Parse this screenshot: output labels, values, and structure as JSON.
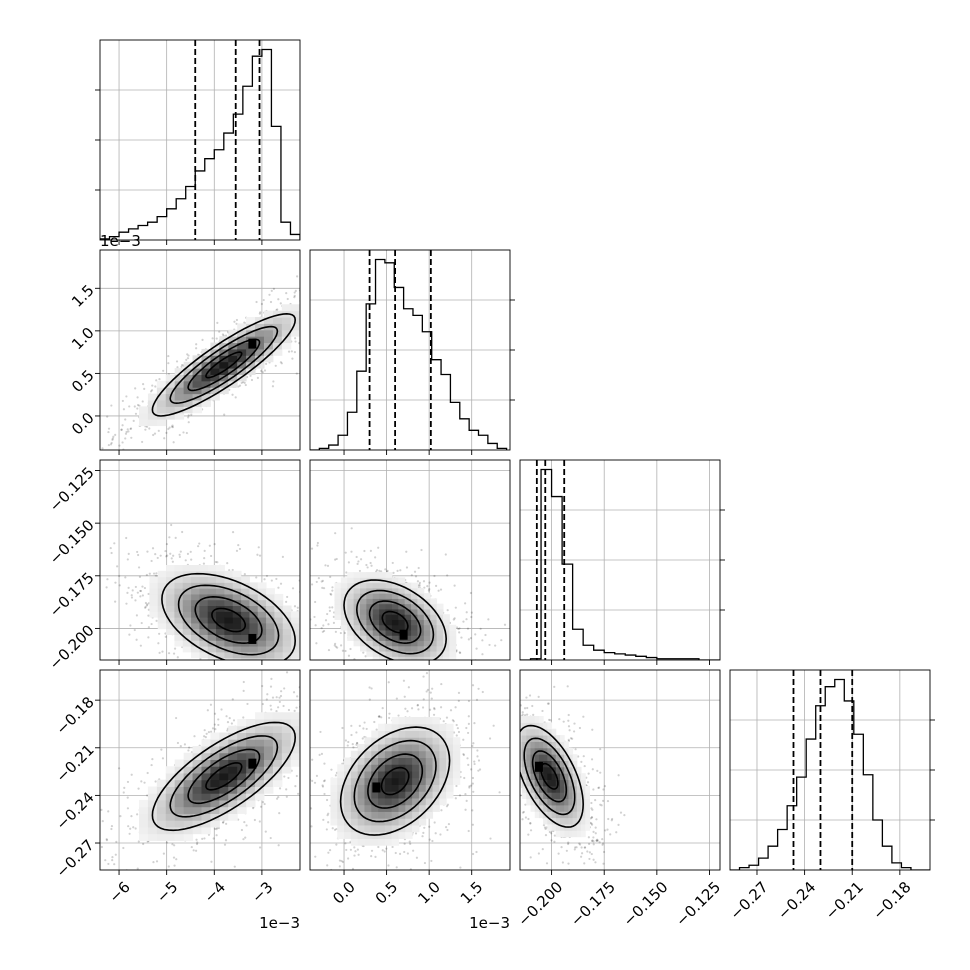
{
  "chart_data": {
    "type": "corner",
    "title": "",
    "params": [
      {
        "lim": [
          -6.4,
          -2.2
        ],
        "ticks": [
          -6,
          -5,
          -4,
          -3
        ],
        "tick_labels": [
          "−6",
          "−5",
          "−4",
          "−3"
        ],
        "offset": "1e−3"
      },
      {
        "lim": [
          -0.4,
          1.95
        ],
        "ticks": [
          0.0,
          0.5,
          1.0,
          1.5
        ],
        "tick_labels": [
          "0.0",
          "0.5",
          "1.0",
          "1.5"
        ],
        "offset": "1e−3"
      },
      {
        "lim": [
          -0.215,
          -0.12
        ],
        "ticks": [
          -0.2,
          -0.175,
          -0.15,
          -0.125
        ],
        "tick_labels": [
          "−0.200",
          "−0.175",
          "−0.150",
          "−0.125"
        ],
        "offset": ""
      },
      {
        "lim": [
          -0.287,
          -0.161
        ],
        "ticks": [
          -0.27,
          -0.24,
          -0.21,
          -0.18
        ],
        "tick_labels": [
          "−0.27",
          "−0.24",
          "−0.21",
          "−0.18"
        ],
        "offset": ""
      }
    ],
    "histograms": [
      {
        "param": 0,
        "bin_edges": [
          -6.4,
          -6.2,
          -6.0,
          -5.8,
          -5.6,
          -5.4,
          -5.2,
          -5.0,
          -4.8,
          -4.6,
          -4.4,
          -4.2,
          -4.0,
          -3.8,
          -3.6,
          -3.4,
          -3.2,
          -3.0,
          -2.8,
          -2.6,
          -2.4,
          -2.2
        ],
        "counts": [
          1,
          3,
          7,
          10,
          13,
          16,
          21,
          28,
          37,
          48,
          62,
          73,
          81,
          96,
          113,
          138,
          165,
          171,
          102,
          16,
          5
        ],
        "quantiles": [
          -4.4,
          -3.55,
          -3.05
        ]
      },
      {
        "param": 1,
        "bin_edges": [
          -0.4,
          -0.29,
          -0.18,
          -0.07,
          0.04,
          0.15,
          0.26,
          0.37,
          0.48,
          0.59,
          0.7,
          0.81,
          0.92,
          1.03,
          1.14,
          1.25,
          1.36,
          1.47,
          1.58,
          1.69,
          1.8,
          1.91
        ],
        "counts": [
          0,
          1,
          3,
          9,
          23,
          48,
          89,
          116,
          114,
          99,
          86,
          82,
          72,
          55,
          46,
          29,
          19,
          12,
          9,
          4,
          1
        ],
        "quantiles": [
          0.3,
          0.6,
          1.02
        ]
      },
      {
        "param": 2,
        "bin_edges": [
          -0.215,
          -0.21,
          -0.205,
          -0.2,
          -0.195,
          -0.19,
          -0.185,
          -0.18,
          -0.175,
          -0.17,
          -0.165,
          -0.16,
          -0.155,
          -0.15,
          -0.145,
          -0.14,
          -0.135,
          -0.13,
          -0.125,
          -0.12
        ],
        "counts": [
          0,
          1,
          155,
          133,
          78,
          25,
          12,
          8,
          6,
          5,
          4,
          3,
          2,
          1,
          1,
          1,
          1,
          0,
          0
        ],
        "quantiles": [
          -0.207,
          -0.203,
          -0.194
        ]
      },
      {
        "param": 3,
        "bin_edges": [
          -0.287,
          -0.281,
          -0.275,
          -0.269,
          -0.263,
          -0.257,
          -0.251,
          -0.245,
          -0.239,
          -0.233,
          -0.227,
          -0.221,
          -0.215,
          -0.209,
          -0.203,
          -0.197,
          -0.191,
          -0.185,
          -0.179,
          -0.173,
          -0.167,
          -0.161
        ],
        "counts": [
          0,
          1,
          2,
          5,
          10,
          17,
          27,
          39,
          55,
          69,
          77,
          80,
          71,
          57,
          40,
          21,
          10,
          3,
          1,
          0,
          0
        ],
        "quantiles": [
          -0.247,
          -0.23,
          -0.21
        ]
      }
    ],
    "pairs": [
      {
        "x_param": 0,
        "y_param": 1,
        "correlation": 0.88,
        "center": [
          -3.8,
          0.6
        ],
        "spread": [
          0.75,
          0.3
        ],
        "mode": [
          -3.2,
          0.85
        ]
      },
      {
        "x_param": 0,
        "y_param": 2,
        "correlation": -0.45,
        "center": [
          -3.7,
          -0.196
        ],
        "spread": [
          0.7,
          0.011
        ],
        "mode": [
          -3.2,
          -0.205
        ]
      },
      {
        "x_param": 0,
        "y_param": 3,
        "correlation": 0.72,
        "center": [
          -3.8,
          -0.228
        ],
        "spread": [
          0.75,
          0.017
        ],
        "mode": [
          -3.2,
          -0.22
        ]
      },
      {
        "x_param": 1,
        "y_param": 2,
        "correlation": -0.4,
        "center": [
          0.6,
          -0.197
        ],
        "spread": [
          0.3,
          0.01
        ],
        "mode": [
          0.7,
          -0.203
        ]
      },
      {
        "x_param": 1,
        "y_param": 3,
        "correlation": 0.38,
        "center": [
          0.6,
          -0.231
        ],
        "spread": [
          0.32,
          0.017
        ],
        "mode": [
          0.38,
          -0.235
        ]
      },
      {
        "x_param": 2,
        "y_param": 3,
        "correlation": -0.55,
        "center": [
          -0.201,
          -0.228
        ],
        "spread": [
          0.008,
          0.016
        ],
        "mode": [
          -0.206,
          -0.222
        ]
      }
    ],
    "contour_levels_sigma": [
      0.5,
      1.0,
      1.5,
      2.0
    ],
    "grid": true
  }
}
